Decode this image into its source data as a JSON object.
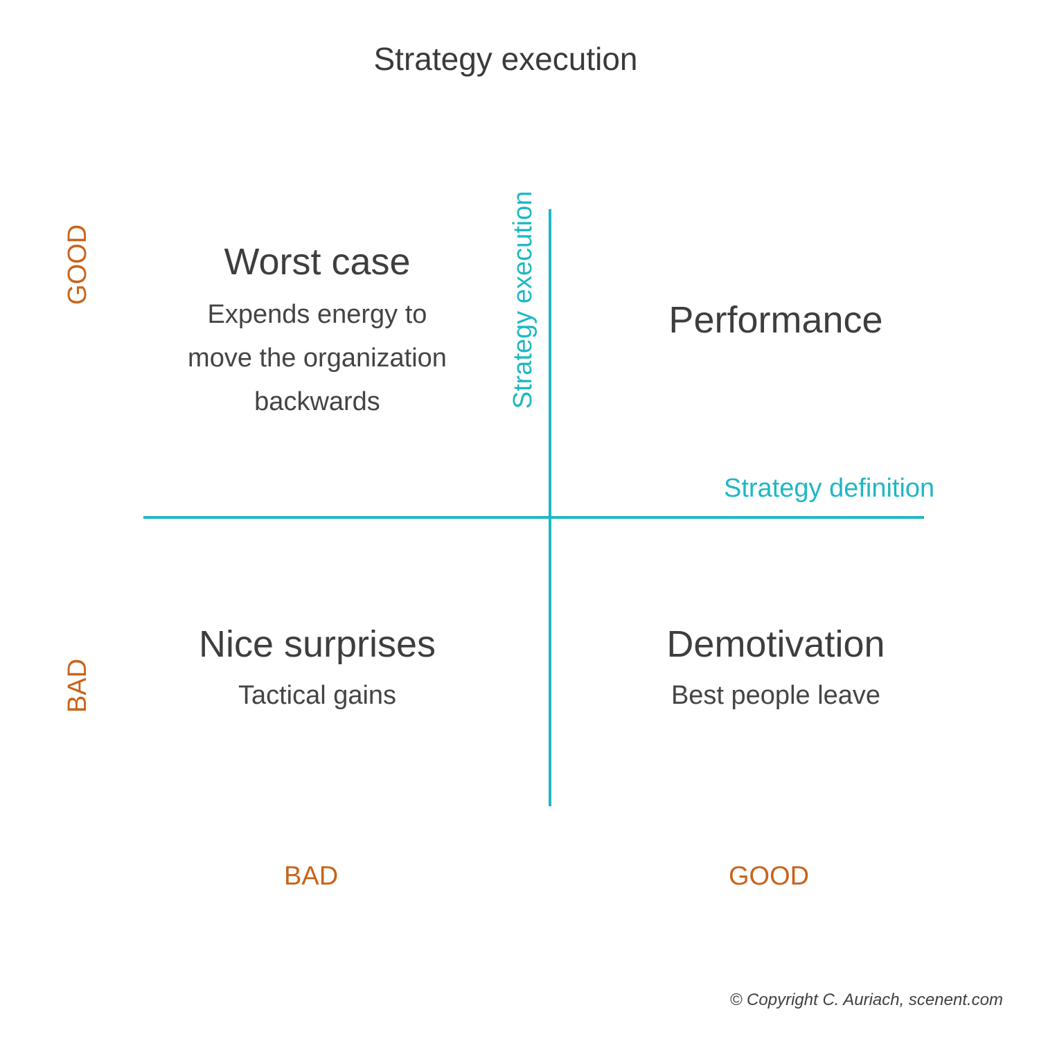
{
  "title": "Strategy execution",
  "axes": {
    "vertical_label": "Strategy execution",
    "horizontal_label": "Strategy definition",
    "color": "#1eb8c4"
  },
  "ratings": {
    "y_top": "GOOD",
    "y_bottom": "BAD",
    "x_left": "BAD",
    "x_right": "GOOD",
    "color": "#c8631a"
  },
  "quadrants": {
    "top_left": {
      "title": "Worst case",
      "lines": [
        "Expends energy to",
        "move the organization",
        "backwards"
      ]
    },
    "top_right": {
      "title": "Performance"
    },
    "bottom_left": {
      "title": "Nice surprises",
      "lines": [
        "Tactical gains"
      ]
    },
    "bottom_right": {
      "title": "Demotivation",
      "lines": [
        "Best people leave"
      ]
    }
  },
  "copyright": "© Copyright C. Auriach, scenent.com"
}
